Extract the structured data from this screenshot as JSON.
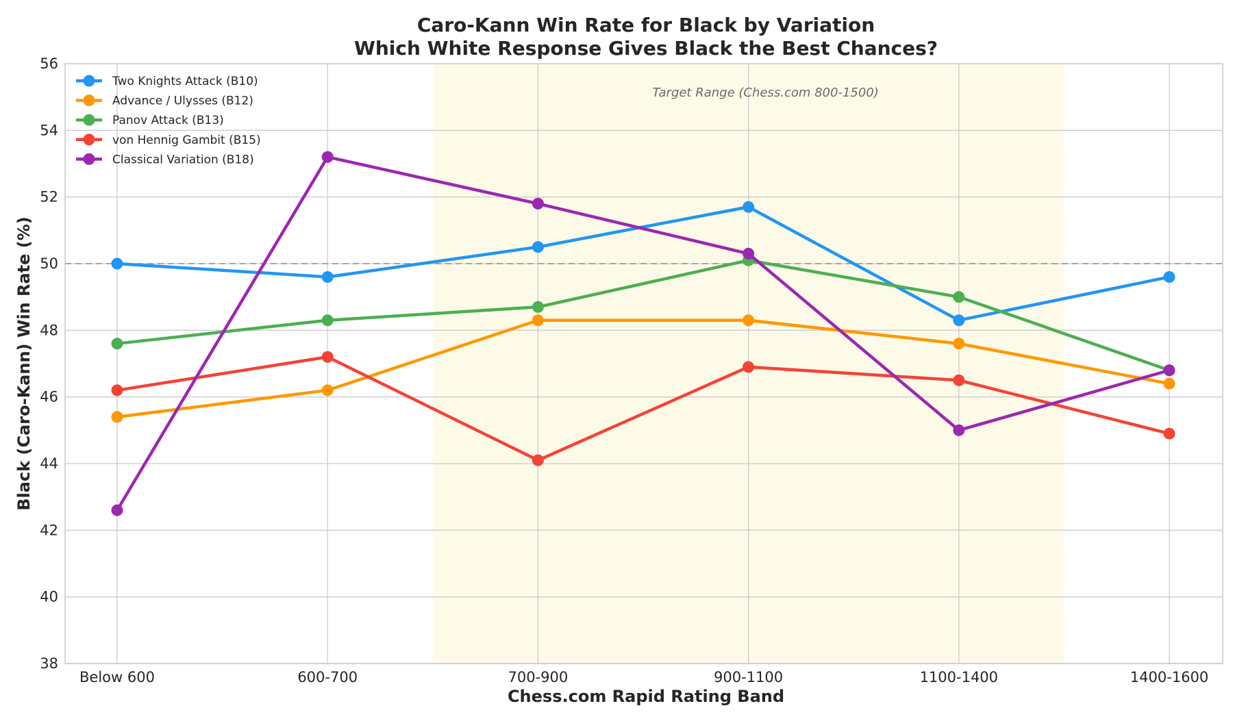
{
  "chart_data": {
    "type": "line",
    "title": "Caro-Kann Win Rate for Black by Variation",
    "subtitle": "Which White Response Gives Black the Best Chances?",
    "xlabel": "Chess.com Rapid Rating Band",
    "ylabel": "Black (Caro-Kann) Win Rate (%)",
    "categories": [
      "Below 600",
      "600-700",
      "700-900",
      "900-1100",
      "1100-1400",
      "1400-1600"
    ],
    "ylim": [
      38,
      56
    ],
    "yticks": [
      38,
      40,
      42,
      44,
      46,
      48,
      50,
      52,
      54,
      56
    ],
    "grid": true,
    "legend_position": "top-left",
    "reference_line": {
      "y": 50,
      "style": "dashed",
      "color": "#a6a6a6"
    },
    "highlight_band": {
      "from": 1.5,
      "to": 4.5,
      "color": "#fdfae8",
      "label": "Target Range (Chess.com 800-1500)"
    },
    "series": [
      {
        "name": "Two Knights Attack (B10)",
        "color": "#2196f3",
        "values": [
          50.0,
          49.6,
          50.5,
          51.7,
          48.3,
          49.6
        ]
      },
      {
        "name": "Advance / Ulysses (B12)",
        "color": "#ff9800",
        "values": [
          45.4,
          46.2,
          48.3,
          48.3,
          47.6,
          46.4
        ]
      },
      {
        "name": "Panov Attack (B13)",
        "color": "#4caf50",
        "values": [
          47.6,
          48.3,
          48.7,
          50.1,
          49.0,
          46.8
        ]
      },
      {
        "name": "von Hennig Gambit (B15)",
        "color": "#f44336",
        "values": [
          46.2,
          47.2,
          44.1,
          46.9,
          46.5,
          44.9
        ]
      },
      {
        "name": "Classical Variation (B18)",
        "color": "#9c27b0",
        "values": [
          42.6,
          53.2,
          51.8,
          50.3,
          45.0,
          46.8
        ]
      }
    ]
  }
}
